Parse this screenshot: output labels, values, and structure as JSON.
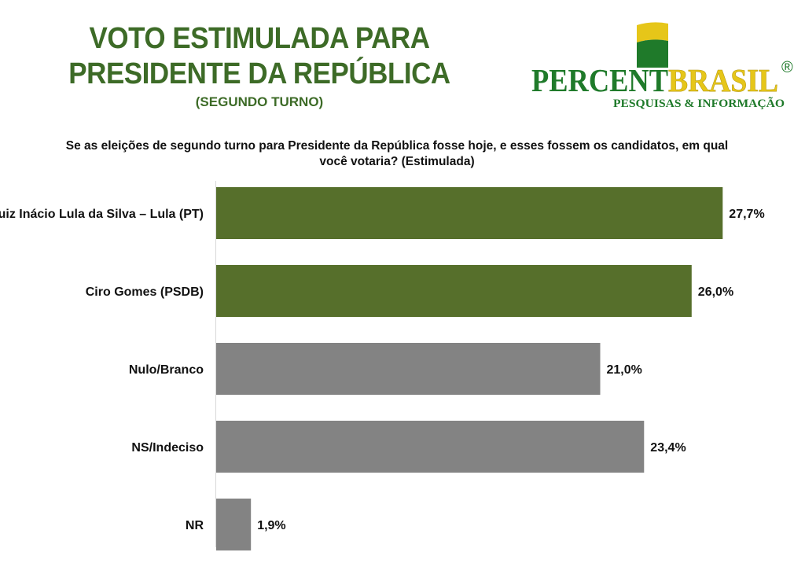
{
  "header": {
    "title_line1": "VOTO ESTIMULADA PARA",
    "title_line2": "PRESIDENTE DA REPÚBLICA",
    "subtitle": "(SEGUNDO TURNO)",
    "question": "Se as eleições de segundo turno para Presidente da República fosse hoje, e esses fossem os candidatos, em qual você votaria? (Estimulada)"
  },
  "logo": {
    "brand_part1": "PERCENT",
    "brand_part2": "BRASIL",
    "registered": "®",
    "tagline": "PESQUISAS & INFORMAÇÃO"
  },
  "colors": {
    "title_green": "#3d6b27",
    "candidate_bar": "#566f2b",
    "other_bar": "#838383",
    "logo_yellow": "#e6c619",
    "logo_green": "#1f7a2a"
  },
  "chart_data": {
    "type": "bar",
    "orientation": "horizontal",
    "categories": [
      "Luiz Inácio Lula da Silva – Lula (PT)",
      "Ciro Gomes (PSDB)",
      "Nulo/Branco",
      "NS/Indeciso",
      "NR"
    ],
    "values": [
      27.7,
      26.0,
      21.0,
      23.4,
      1.9
    ],
    "value_labels": [
      "27,7%",
      "26,0%",
      "21,0%",
      "23,4%",
      "1,9%"
    ],
    "bar_colors": [
      "#566f2b",
      "#566f2b",
      "#838383",
      "#838383",
      "#838383"
    ],
    "title": "Se as eleições de segundo turno para Presidente da República fosse hoje, e esses fossem os candidatos, em qual você votaria? (Estimulada)",
    "xlabel": "",
    "ylabel": "",
    "grid": false
  }
}
